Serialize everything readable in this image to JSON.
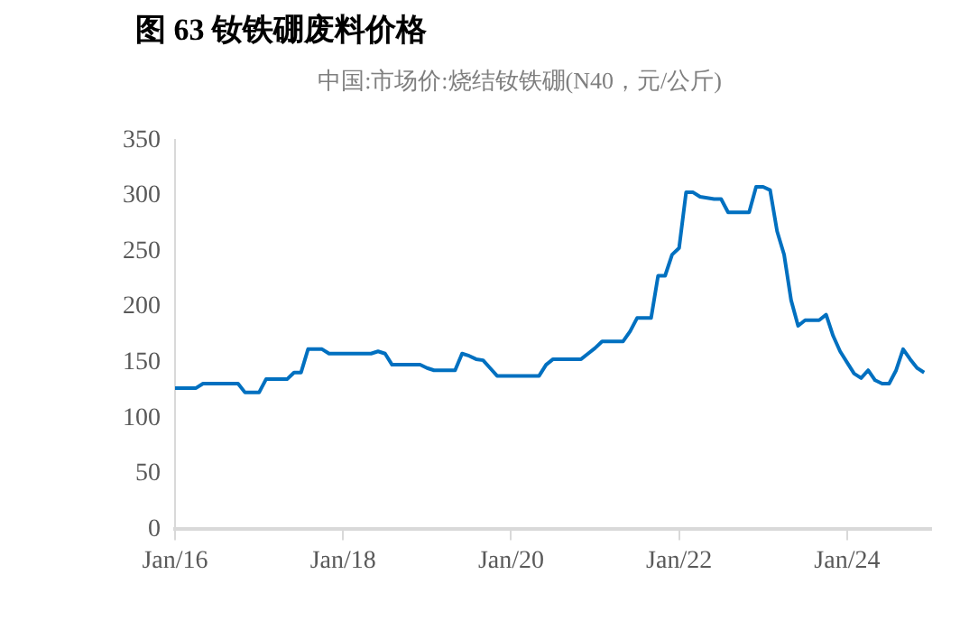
{
  "chart_data": {
    "type": "line",
    "title": "图 63  钕铁硼废料价格",
    "subtitle": "中国:市场价:烧结钕铁硼(N40，元/公斤)",
    "x": [
      "2016-01",
      "2016-04",
      "2016-05",
      "2016-10",
      "2016-11",
      "2017-01",
      "2017-02",
      "2017-05",
      "2017-06",
      "2017-07",
      "2017-08",
      "2017-10",
      "2017-11",
      "2018-05",
      "2018-06",
      "2018-07",
      "2018-08",
      "2018-12",
      "2019-01",
      "2019-02",
      "2019-05",
      "2019-06",
      "2019-07",
      "2019-08",
      "2019-09",
      "2019-10",
      "2019-11",
      "2020-05",
      "2020-06",
      "2020-07",
      "2020-11",
      "2020-12",
      "2021-01",
      "2021-02",
      "2021-05",
      "2021-06",
      "2021-07",
      "2021-09",
      "2021-10",
      "2021-11",
      "2021-12",
      "2022-01",
      "2022-02",
      "2022-03",
      "2022-04",
      "2022-06",
      "2022-07",
      "2022-08",
      "2022-11",
      "2022-12",
      "2023-01",
      "2023-02",
      "2023-03",
      "2023-04",
      "2023-05",
      "2023-06",
      "2023-07",
      "2023-09",
      "2023-10",
      "2023-11",
      "2023-12",
      "2024-01",
      "2024-02",
      "2024-03",
      "2024-04",
      "2024-05",
      "2024-06",
      "2024-07",
      "2024-08",
      "2024-09",
      "2024-10",
      "2024-11",
      "2024-12"
    ],
    "series": [
      {
        "color": "#0070c0",
        "values": [
          127,
          127,
          131,
          131,
          123,
          123,
          135,
          135,
          141,
          141,
          162,
          162,
          158,
          158,
          160,
          158,
          148,
          148,
          145,
          143,
          143,
          158,
          156,
          153,
          152,
          145,
          138,
          138,
          148,
          153,
          153,
          158,
          163,
          169,
          169,
          178,
          190,
          190,
          228,
          228,
          247,
          253,
          303,
          303,
          299,
          297,
          297,
          285,
          285,
          308,
          308,
          305,
          268,
          247,
          206,
          183,
          188,
          188,
          193,
          174,
          160,
          150,
          140,
          136,
          143,
          134,
          131,
          131,
          143,
          162,
          153,
          145,
          141
        ]
      }
    ],
    "xlim": [
      "2016-01",
      "2025-01"
    ],
    "xticks": [
      {
        "value": "2016-01",
        "label": "Jan/16"
      },
      {
        "value": "2018-01",
        "label": "Jan/18"
      },
      {
        "value": "2020-01",
        "label": "Jan/20"
      },
      {
        "value": "2022-01",
        "label": "Jan/22"
      },
      {
        "value": "2024-01",
        "label": "Jan/24"
      }
    ],
    "ylim": [
      0,
      350
    ],
    "yticks": [
      0,
      50,
      100,
      150,
      200,
      250,
      300,
      350
    ],
    "grid": false,
    "legend": false,
    "marker": "none",
    "line_style": "solid"
  }
}
